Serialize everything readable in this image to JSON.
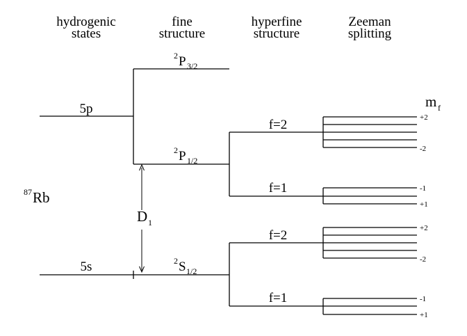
{
  "columns": {
    "hydrogenic": [
      "hydrogenic",
      "states"
    ],
    "fine": [
      "fine",
      "structure"
    ],
    "hyperfine": [
      "hyperfine",
      "structure"
    ],
    "zeeman": [
      "Zeeman",
      "splitting"
    ]
  },
  "atom": {
    "mass_number": "87",
    "symbol": "Rb"
  },
  "states": {
    "p5": "5p",
    "s5": "5s"
  },
  "fine_levels": {
    "p32": {
      "superscript": "2",
      "letter": "P",
      "subscript": "3/2"
    },
    "p12": {
      "superscript": "2",
      "letter": "P",
      "subscript": "1/2"
    },
    "s12": {
      "superscript": "2",
      "letter": "S",
      "subscript": "1/2"
    }
  },
  "transition": {
    "letter": "D",
    "subscript": "1"
  },
  "hyperfine": {
    "p_upper": "f=2",
    "p_lower": "f=1",
    "s_upper": "f=2",
    "s_lower": "f=1"
  },
  "zeeman": {
    "mf_label": {
      "letter": "m",
      "subscript": "f"
    },
    "p_f2": {
      "top": "+2",
      "bottom": "-2"
    },
    "p_f1": {
      "top": "-1",
      "bottom": "+1"
    },
    "s_f2": {
      "top": "+2",
      "bottom": "-2"
    },
    "s_f1": {
      "top": "-1",
      "bottom": "+1"
    }
  }
}
